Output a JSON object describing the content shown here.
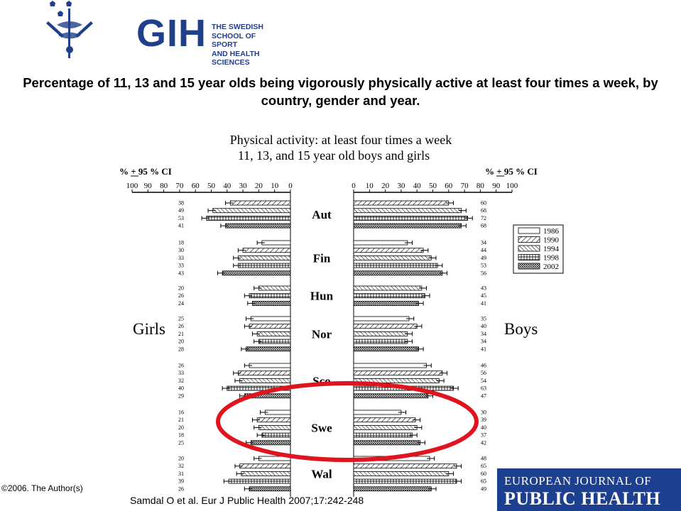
{
  "logo": {
    "abbrev": "GIH",
    "lines": [
      "THE SWEDISH",
      "SCHOOL OF SPORT",
      "AND HEALTH SCIENCES"
    ],
    "color": "#1f3f8a"
  },
  "slide_title": "Percentage of 11, 13 and 15 year olds being vigorously physically active at least four times a week, by country, gender and year.",
  "copyright": "©2006. The Author(s)",
  "citation": "Samdal O et al. Eur J Public Health 2007;17:242-248",
  "journal": {
    "line1": "EUROPEAN JOURNAL OF",
    "line2": "PUBLIC HEALTH",
    "bg": "#1d3f8f"
  },
  "highlight_color": "#e0141e",
  "chart_data": {
    "type": "bar",
    "orientation": "horizontal",
    "title": "Physical activity: at least four times a week",
    "subtitle": "11, 13, and 15 year old boys and girls",
    "left_axis_label": "% + 95 % CI",
    "right_axis_label": "% + 95 % CI",
    "left_ticks": [
      100,
      90,
      80,
      70,
      60,
      50,
      40,
      30,
      20,
      10,
      0
    ],
    "right_ticks": [
      0,
      10,
      20,
      30,
      40,
      50,
      60,
      70,
      80,
      90,
      100
    ],
    "xlim": [
      0,
      100
    ],
    "left_group": "Girls",
    "right_group": "Boys",
    "legend": [
      "1986",
      "1990",
      "1994",
      "1998",
      "2002"
    ],
    "legend_position": "right",
    "countries": [
      {
        "name": "Aut",
        "years": [
          "1990",
          "1994",
          "1998",
          "2002"
        ],
        "girls": [
          38,
          49,
          53,
          41
        ],
        "boys": [
          60,
          68,
          72,
          68
        ]
      },
      {
        "name": "Fin",
        "years": [
          "1986",
          "1990",
          "1994",
          "1998",
          "2002"
        ],
        "girls": [
          18,
          30,
          33,
          33,
          43
        ],
        "boys": [
          34,
          44,
          49,
          53,
          56
        ]
      },
      {
        "name": "Hun",
        "years": [
          "1994",
          "1998",
          "2002"
        ],
        "girls": [
          20,
          26,
          24
        ],
        "boys": [
          43,
          45,
          41
        ]
      },
      {
        "name": "Nor",
        "years": [
          "1986",
          "1990",
          "1994",
          "1998",
          "2002"
        ],
        "girls": [
          25,
          26,
          21,
          20,
          28
        ],
        "boys": [
          35,
          40,
          34,
          34,
          41
        ]
      },
      {
        "name": "Sco",
        "years": [
          "1986",
          "1990",
          "1994",
          "1998",
          "2002"
        ],
        "girls": [
          26,
          33,
          32,
          40,
          29
        ],
        "boys": [
          46,
          56,
          54,
          63,
          47
        ]
      },
      {
        "name": "Swe",
        "years": [
          "1986",
          "1990",
          "1994",
          "1998",
          "2002"
        ],
        "girls": [
          16,
          21,
          20,
          18,
          25
        ],
        "boys": [
          30,
          39,
          40,
          37,
          42
        ]
      },
      {
        "name": "Wal",
        "years": [
          "1986",
          "1990",
          "1994",
          "1998",
          "2002"
        ],
        "girls": [
          20,
          32,
          31,
          39,
          26
        ],
        "boys": [
          48,
          65,
          60,
          65,
          49
        ]
      }
    ]
  }
}
